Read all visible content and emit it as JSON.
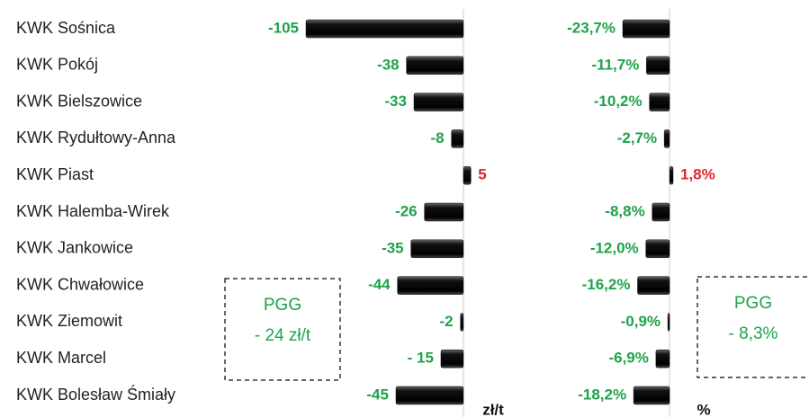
{
  "chart_data": [
    {
      "type": "hbar",
      "categories": [
        "KWK Sośnica",
        "KWK Pokój",
        "KWK Bielszowice",
        "KWK Rydułtowy-Anna",
        "KWK Piast",
        "KWK Halemba-Wirek",
        "KWK Jankowice",
        "KWK Chwałowice",
        "KWK Ziemowit",
        "KWK Marcel",
        "KWK Bolesław Śmiały"
      ],
      "values": [
        -105,
        -38,
        -33,
        -8,
        5,
        -26,
        -35,
        -44,
        -2,
        -15,
        -45
      ],
      "value_labels": [
        "-105",
        "-38",
        "-33",
        "-8",
        "5",
        "-26",
        "-35",
        "-44",
        "-2",
        "- 15",
        "-45"
      ],
      "xlim": [
        -105,
        5
      ],
      "unit": "zł/t",
      "box_lines": [
        "PGG",
        "- 24 zł/t"
      ],
      "color": "#111111",
      "negative_color": "#1fa24a",
      "positive_color": "#e0262c"
    },
    {
      "type": "hbar",
      "values": [
        -23.7,
        -11.7,
        -10.2,
        -2.7,
        1.8,
        -8.8,
        -12.0,
        -16.2,
        -0.9,
        -6.9,
        -18.2
      ],
      "value_labels": [
        "-23,7%",
        "-11,7%",
        "-10,2%",
        "-2,7%",
        "1,8%",
        "-8,8%",
        "-12,0%",
        "-16,2%",
        "-0,9%",
        "-6,9%",
        "-18,2%"
      ],
      "xlim": [
        -23.7,
        1.8
      ],
      "unit": "%",
      "box_lines": [
        "PGG",
        "- 8,3%"
      ],
      "color": "#111111",
      "negative_color": "#1fa24a",
      "positive_color": "#e0262c"
    }
  ]
}
